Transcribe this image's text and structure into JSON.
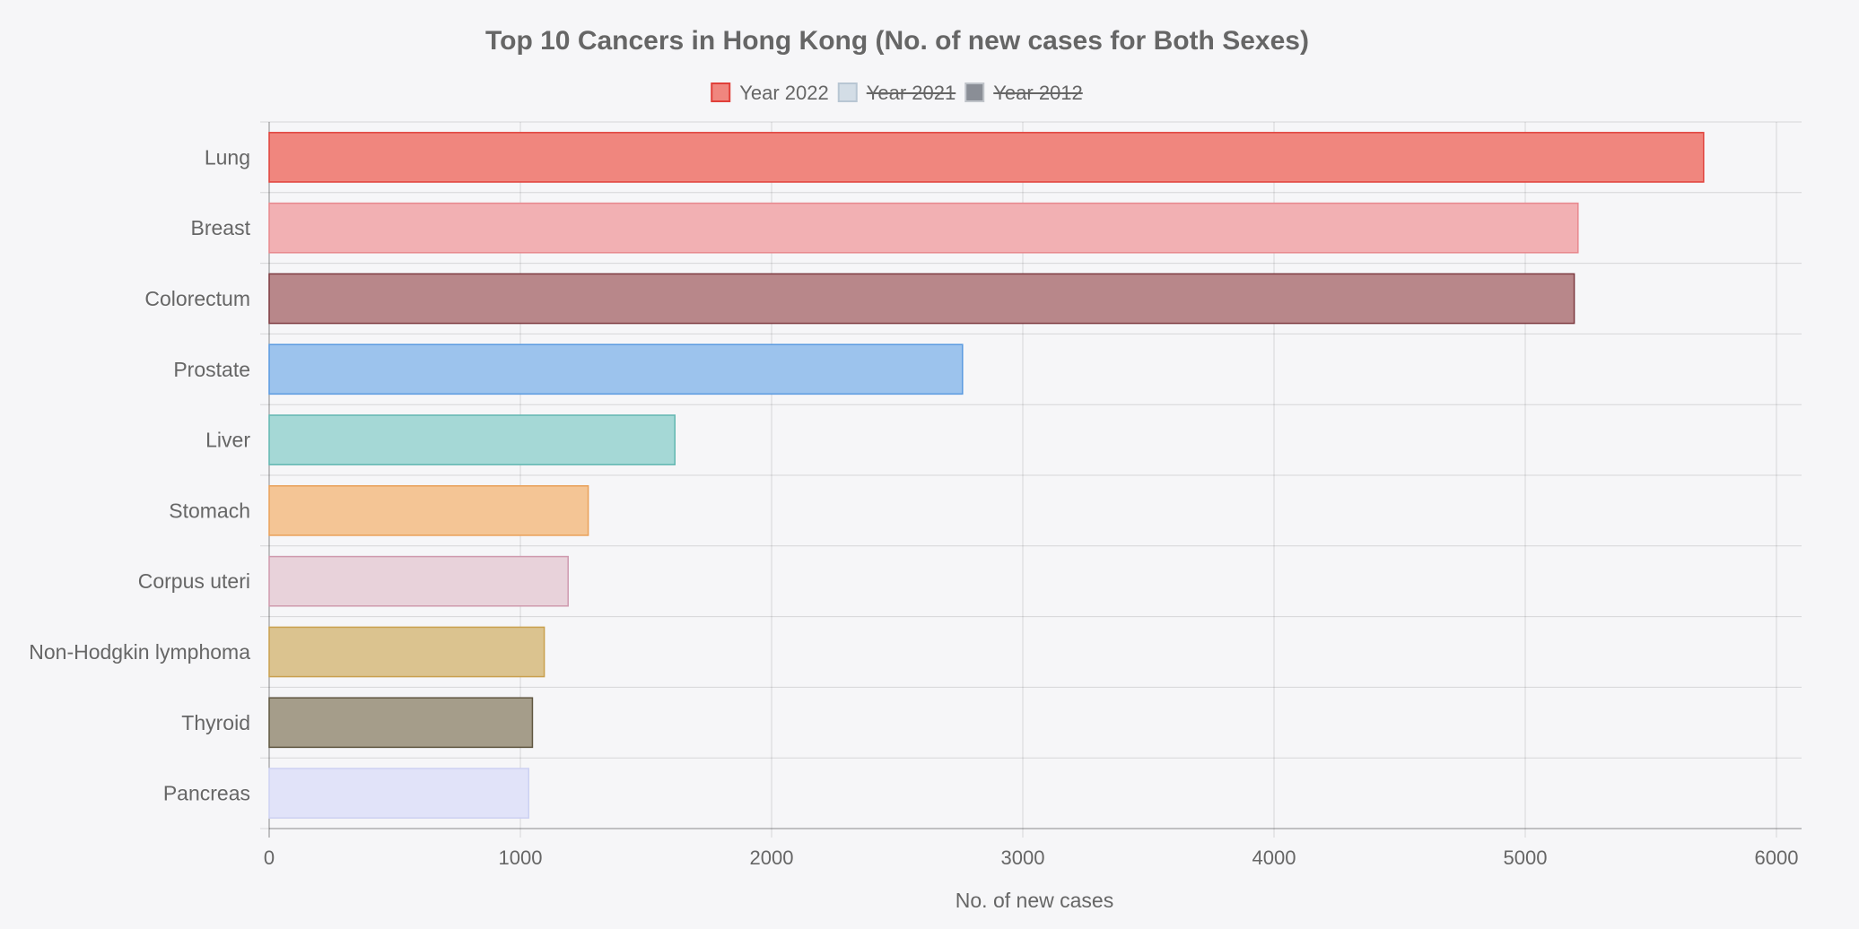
{
  "chart_data": {
    "type": "bar",
    "orientation": "horizontal",
    "title": "Top 10 Cancers in Hong Kong (No. of new cases for Both Sexes)",
    "xlabel": "No. of new cases",
    "ylabel": "",
    "xlim": [
      0,
      6100
    ],
    "x_ticks": [
      0,
      1000,
      2000,
      3000,
      4000,
      5000,
      6000
    ],
    "grid": true,
    "legend_position": "top",
    "legend": [
      {
        "label": "Year 2022",
        "color": "#f0867e",
        "border": "#e0403a",
        "hidden": false
      },
      {
        "label": "Year 2021",
        "color": "#d3dde6",
        "border": "#b8c6d3",
        "hidden": true
      },
      {
        "label": "Year 2012",
        "color": "#8a8e96",
        "border": "#c0c4ca",
        "hidden": true
      }
    ],
    "categories": [
      "Lung",
      "Breast",
      "Colorectum",
      "Prostate",
      "Liver",
      "Stomach",
      "Corpus uteri",
      "Non-Hodgkin lymphoma",
      "Thyroid",
      "Pancreas"
    ],
    "series": [
      {
        "name": "Year 2022",
        "values": [
          5710,
          5210,
          5195,
          2760,
          1615,
          1270,
          1190,
          1095,
          1048,
          1033
        ],
        "colors": [
          "#f0867e",
          "#f2b0b3",
          "#b8878a",
          "#9cc3ed",
          "#a5d8d6",
          "#f4c595",
          "#e8d2da",
          "#dbc38f",
          "#a59d8a",
          "#e1e3f9"
        ],
        "borders": [
          "#e0403a",
          "#e8888e",
          "#7d3a40",
          "#5a9ae0",
          "#62b7b1",
          "#eaa15a",
          "#cf9aae",
          "#c9a04e",
          "#5f5640",
          "#cdd1f2"
        ]
      }
    ]
  }
}
